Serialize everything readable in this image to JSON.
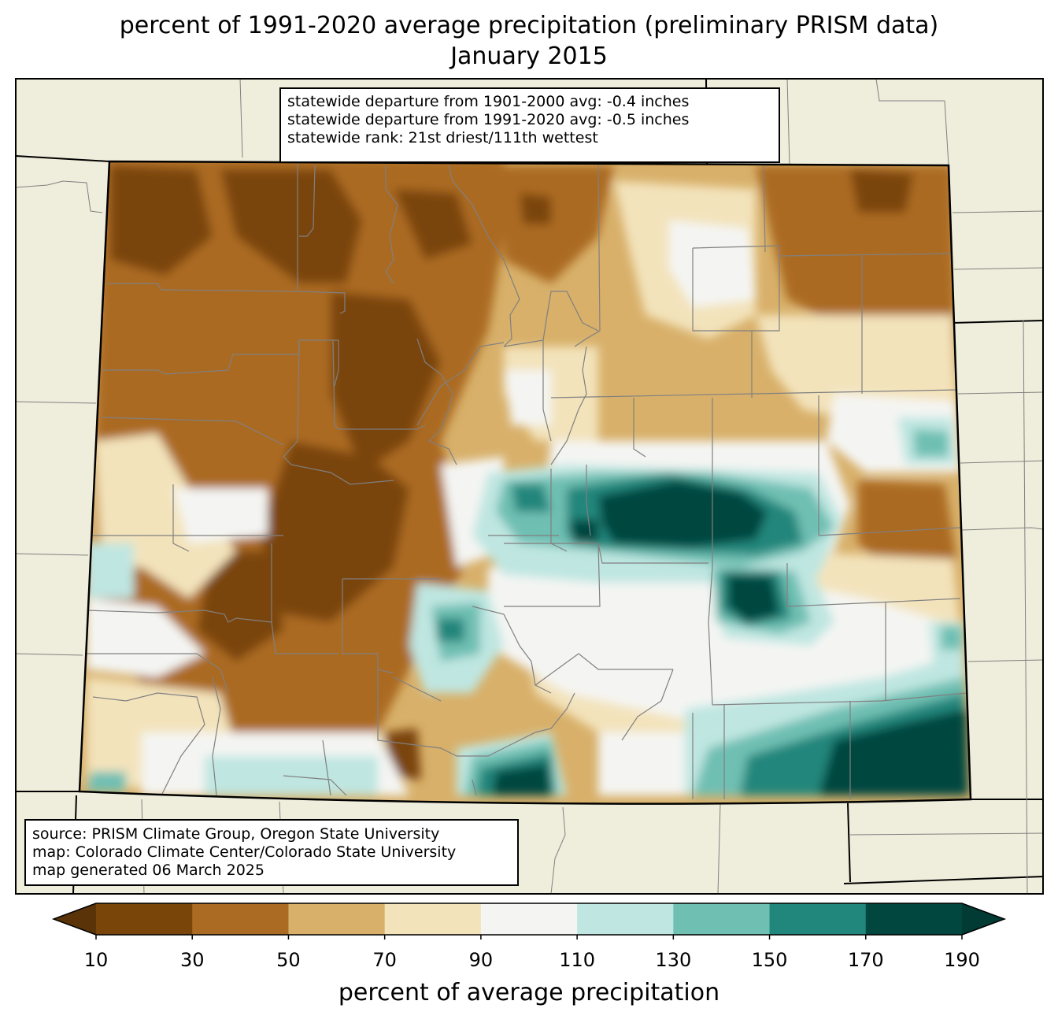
{
  "title": {
    "line1": "percent of 1991-2020 average precipitation (preliminary PRISM data)",
    "line2": "January 2015"
  },
  "stats_box": {
    "lines": [
      "statewide departure from 1901-2000 avg: -0.4 inches",
      "statewide departure from 1991-2020 avg: -0.5 inches",
      "statewide rank: 21st driest/111th wettest"
    ]
  },
  "credits_box": {
    "lines": [
      "source: PRISM Climate Group, Oregon State University",
      "map: Colorado Climate Center/Colorado State University",
      "map generated 06 March 2025"
    ]
  },
  "colorbar": {
    "label": "percent of average precipitation",
    "ticks": [
      "10",
      "30",
      "50",
      "70",
      "90",
      "110",
      "130",
      "150",
      "170",
      "190"
    ],
    "colors": [
      "#5a3408",
      "#7a4509",
      "#ab6b22",
      "#d8b06a",
      "#f3e3bb",
      "#f4f5f3",
      "#bfe6e1",
      "#6fbfb3",
      "#21867c",
      "#02473f",
      "#013b33"
    ],
    "extend_low_color": "#5a3408",
    "extend_high_color": "#013b33"
  },
  "map": {
    "background_color": "#efeddb",
    "state_outline_color": "#000000",
    "county_line_color": "#808080"
  }
}
